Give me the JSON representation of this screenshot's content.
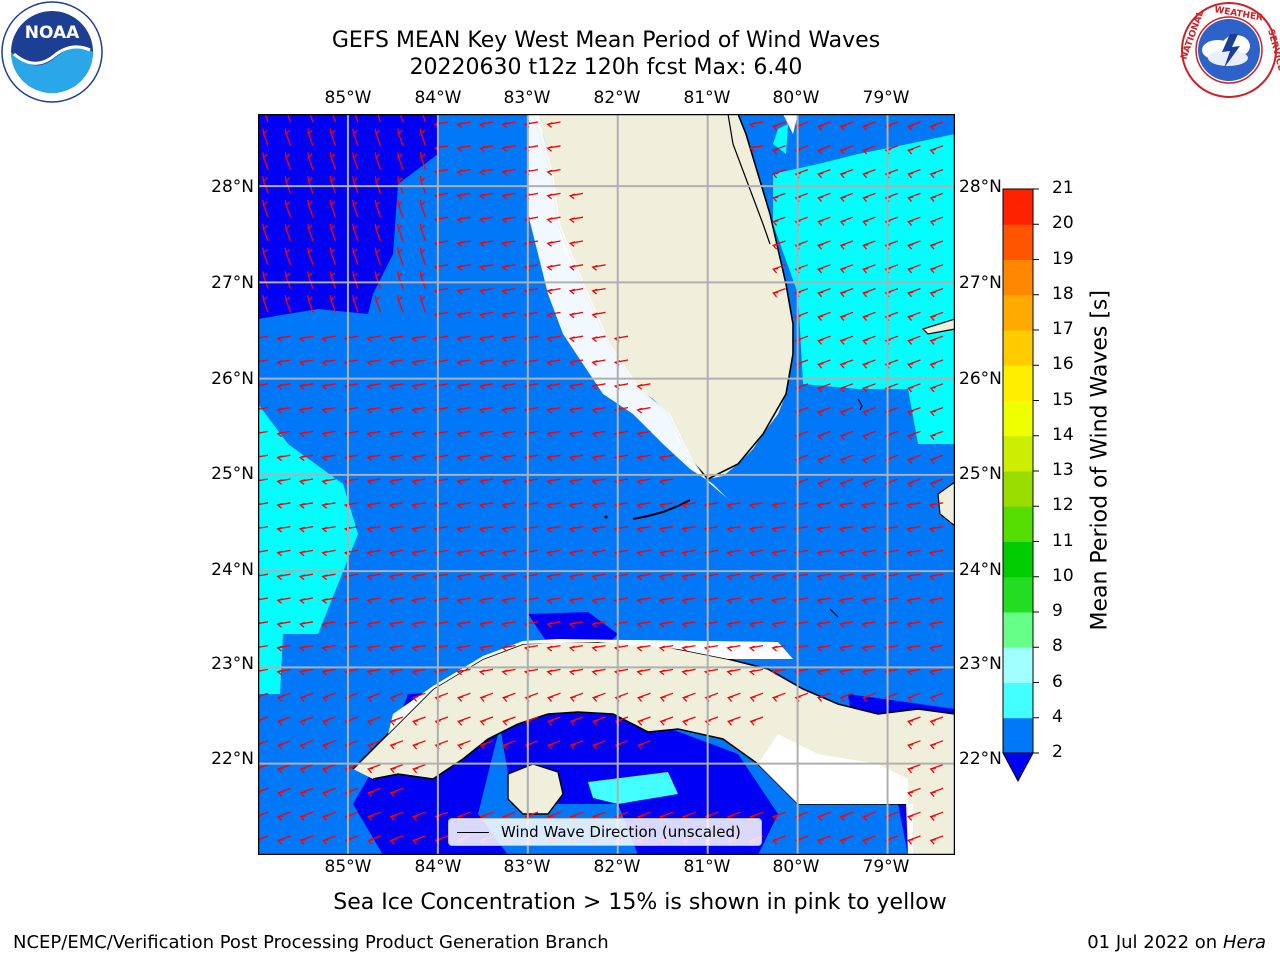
{
  "header": {
    "title_line1": "GEFS MEAN Key West Mean Period of Wind Waves",
    "title_line2": "20220630 t12z 120h fcst   Max: 6.40"
  },
  "logos": {
    "left": {
      "name": "noaa-logo",
      "text": "NOAA",
      "ring_text": "NATIONAL OCEANIC AND ATMOSPHERIC ADMINISTRATION · U.S. DEPARTMENT OF COMMERCE"
    },
    "right": {
      "name": "nws-logo",
      "ring_text": "NATIONAL WEATHER SERVICE"
    }
  },
  "map": {
    "lon_labels": [
      "85°W",
      "84°W",
      "83°W",
      "82°W",
      "81°W",
      "80°W",
      "79°W"
    ],
    "lat_labels": [
      "28°N",
      "27°N",
      "26°N",
      "25°N",
      "24°N",
      "23°N",
      "22°N"
    ],
    "lon_range": [
      -86.0,
      -78.25
    ],
    "lat_range": [
      21.05,
      28.75
    ],
    "colors": {
      "deep_blue": "#0000f4",
      "blue": "#0078f8",
      "cyan": "#00ffff",
      "land": "#efefdc",
      "arrow": "#ff0000",
      "grid": "#b0b0b0"
    },
    "legend_label": "Wind Wave Direction (unscaled)"
  },
  "colorbar": {
    "label": "Mean Period of Wind Waves [s]",
    "ticks": [
      "2",
      "4",
      "6",
      "8",
      "9",
      "10",
      "11",
      "12",
      "13",
      "14",
      "15",
      "16",
      "17",
      "18",
      "19",
      "20",
      "21"
    ],
    "colors": [
      "#0078f8",
      "#00e8ff",
      "#44ffff",
      "#a0ffff",
      "#66ff88",
      "#22dd22",
      "#00cc00",
      "#55dd00",
      "#99dd00",
      "#ccee00",
      "#eeff00",
      "#ffee00",
      "#ffcc00",
      "#ffaa00",
      "#ff8800",
      "#ff5500",
      "#ff2200",
      "#ff0000"
    ],
    "underflow_color": "#0000f4"
  },
  "caption": "Sea Ice Concentration > 15% is shown in pink to yellow",
  "footer": {
    "left": "NCEP/EMC/Verification Post Processing Product Generation Branch",
    "right_date": "01 Jul 2022 on ",
    "right_host": "Hera"
  }
}
